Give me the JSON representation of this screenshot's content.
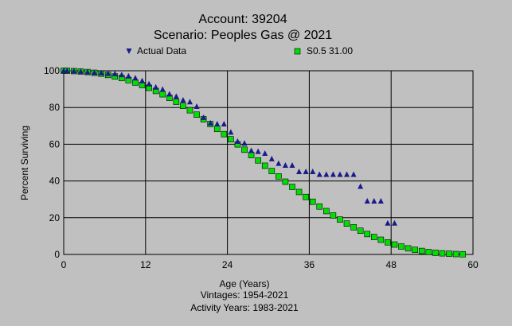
{
  "chart_data": {
    "type": "scatter",
    "title": "Account: 39204",
    "subtitle": "Scenario: Peoples Gas @ 2021",
    "xlabel": "Age (Years)",
    "ylabel": "Percent Surviving",
    "footer_lines": [
      "Vintages: 1954-2021",
      "Activity Years: 1983-2021"
    ],
    "xlim": [
      0,
      60
    ],
    "ylim": [
      0,
      100
    ],
    "xticks": [
      0,
      12,
      24,
      36,
      48,
      60
    ],
    "yticks": [
      0,
      20,
      40,
      60,
      80,
      100
    ],
    "grid": true,
    "legend_position": "top",
    "series": [
      {
        "name": "Actual Data",
        "marker": "triangle",
        "color": "#1a1a8c",
        "x": [
          0,
          0.5,
          1.5,
          2.5,
          3.5,
          4.5,
          5.5,
          6.5,
          7.5,
          8.5,
          9.5,
          10.5,
          11.5,
          12.5,
          13.5,
          14.5,
          15.5,
          16.5,
          17.5,
          18.5,
          19.5,
          20.5,
          21.5,
          22.5,
          23.5,
          24.5,
          25.5,
          26.5,
          27.5,
          28.5,
          29.5,
          30.5,
          31.5,
          32.5,
          33.5,
          34.5,
          35.5,
          36.5,
          37.5,
          38.5,
          39.5,
          40.5,
          41.5,
          42.5,
          43.5,
          44.5,
          45.5,
          46.5,
          47.5,
          48.5
        ],
        "y": [
          100,
          100,
          99.9,
          99.6,
          99.3,
          99.0,
          98.8,
          98.5,
          98.3,
          97.8,
          97.1,
          96.0,
          94.5,
          92.8,
          91.0,
          89.8,
          87.3,
          86.0,
          84.0,
          83.0,
          80.5,
          74.5,
          71.5,
          71.0,
          71.0,
          66.5,
          61.5,
          60.5,
          56.5,
          56.0,
          55.0,
          52.0,
          49.5,
          48.5,
          48.5,
          45.0,
          45.0,
          45.0,
          43.5,
          43.5,
          43.5,
          43.5,
          43.5,
          43.5,
          37.0,
          29.0,
          29.0,
          29.0,
          17.0,
          17.0
        ]
      },
      {
        "name": "S0.5 31.00",
        "marker": "square",
        "color": "#00e000",
        "x": [
          0,
          0.5,
          1.5,
          2.5,
          3.5,
          4.5,
          5.5,
          6.5,
          7.5,
          8.5,
          9.5,
          10.5,
          11.5,
          12.5,
          13.5,
          14.5,
          15.5,
          16.5,
          17.5,
          18.5,
          19.5,
          20.5,
          21.5,
          22.5,
          23.5,
          24.5,
          25.5,
          26.5,
          27.5,
          28.5,
          29.5,
          30.5,
          31.5,
          32.5,
          33.5,
          34.5,
          35.5,
          36.5,
          37.5,
          38.5,
          39.5,
          40.5,
          41.5,
          42.5,
          43.5,
          44.5,
          45.5,
          46.5,
          47.5,
          48.5,
          49.5,
          50.5,
          51.5,
          52.5,
          53.5,
          54.5,
          55.5,
          56.5,
          57.5,
          58.5
        ],
        "y": [
          100,
          100,
          99.8,
          99.6,
          99.3,
          98.9,
          98.4,
          97.7,
          96.9,
          96.0,
          94.9,
          93.6,
          92.2,
          90.7,
          89.0,
          87.2,
          85.2,
          83.1,
          80.9,
          78.5,
          76.1,
          73.6,
          71.0,
          68.3,
          65.5,
          62.7,
          59.9,
          57.0,
          54.1,
          51.2,
          48.3,
          45.4,
          42.5,
          39.6,
          36.8,
          34.0,
          31.3,
          28.7,
          26.1,
          23.6,
          21.2,
          19.0,
          16.8,
          14.8,
          12.9,
          11.1,
          9.5,
          8.0,
          6.6,
          5.4,
          4.3,
          3.3,
          2.5,
          1.9,
          1.3,
          0.9,
          0.6,
          0.4,
          0.2,
          0.1
        ]
      }
    ]
  }
}
